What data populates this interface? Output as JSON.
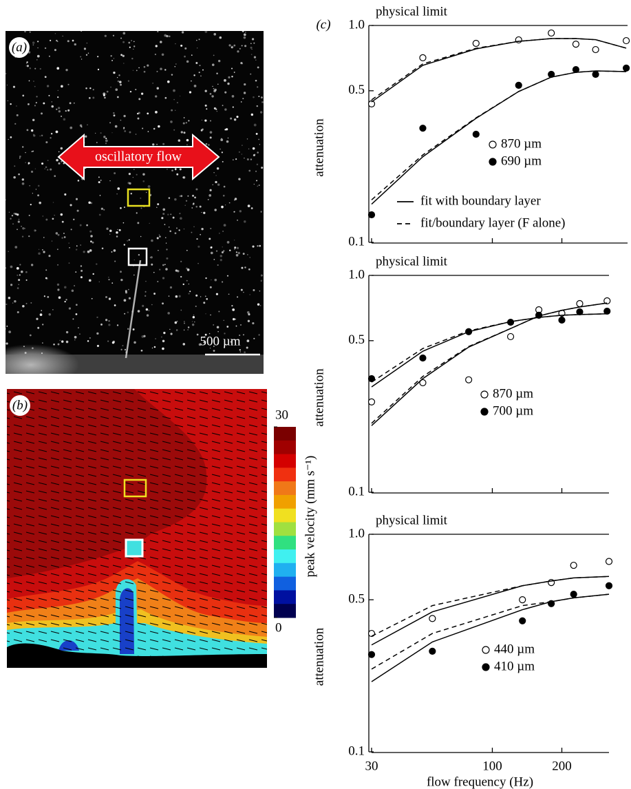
{
  "panel_a": {
    "label": "(a)",
    "arrow_label": "oscillatory flow",
    "scale_bar": "500 µm"
  },
  "panel_b": {
    "label": "(b)",
    "colorbar": {
      "label": "peak velocity (mm s⁻¹)",
      "lim": [
        0,
        30
      ],
      "ticks": [
        0,
        30
      ],
      "colors": [
        "#7a0000",
        "#a00000",
        "#d40000",
        "#f03010",
        "#f07818",
        "#f0a000",
        "#f0e020",
        "#a0e040",
        "#30e080",
        "#40f0f0",
        "#20b0f0",
        "#1060e0",
        "#0010a0",
        "#000050"
      ]
    }
  },
  "chart_data": [
    {
      "type": "scatter",
      "panel": "(c)",
      "ylabel": "attenuation",
      "xscale": "log",
      "yscale": "log",
      "xlim": [
        30,
        385
      ],
      "ylim": [
        0.1,
        1
      ],
      "xticks": [
        30,
        100,
        200
      ],
      "xtick_labels": false,
      "yticks": [
        0.1,
        0.5,
        {
          "value": 1,
          "label": "1.0"
        }
      ],
      "limit": {
        "value": 1,
        "label": "physical limit"
      },
      "x": [
        30,
        50,
        85,
        130,
        180,
        230,
        280,
        380
      ],
      "series": [
        {
          "name": "870 µm",
          "marker": "open",
          "values": [
            0.435,
            0.71,
            0.827,
            0.858,
            0.923,
            0.82,
            0.774,
            0.851
          ]
        },
        {
          "name": "690 µm",
          "marker": "filled",
          "values": [
            0.134,
            0.336,
            0.315,
            0.53,
            0.595,
            0.626,
            0.595,
            0.636
          ]
        },
        {
          "name": "fit with boundary layer",
          "style": "solid",
          "values": [
            [
              0.444,
              0.655,
              0.78,
              0.845,
              0.87,
              0.87,
              0.86,
              0.786
            ],
            [
              0.15,
              0.248,
              0.373,
              0.496,
              0.578,
              0.608,
              0.617,
              0.613
            ]
          ]
        },
        {
          "name": "fit/boundary layer (F alone)",
          "style": "dashed",
          "values": [
            [
              0.454,
              0.665,
              0.785,
              0.845,
              0.87,
              0.87,
              0.86,
              0.786
            ],
            [
              0.157,
              0.253,
              0.375,
              0.496,
              0.578,
              0.608,
              0.617,
              0.613
            ]
          ]
        }
      ]
    },
    {
      "type": "scatter",
      "ylabel": "attenuation",
      "xscale": "log",
      "yscale": "log",
      "xlim": [
        30,
        320
      ],
      "ylim": [
        0.1,
        1
      ],
      "xticks": [
        30,
        100,
        200
      ],
      "xtick_labels": false,
      "yticks": [
        0.1,
        0.5,
        {
          "value": 1,
          "label": "1.0"
        }
      ],
      "limit": {
        "value": 1,
        "label": "physical limit"
      },
      "x": [
        30,
        50,
        79,
        120,
        159,
        200,
        239,
        314
      ],
      "series": [
        {
          "name": "870 µm",
          "marker": "open",
          "values": [
            0.261,
            0.32,
            0.33,
            0.522,
            0.694,
            0.669,
            0.741,
            0.763
          ]
        },
        {
          "name": "700 µm",
          "marker": "filled",
          "values": [
            0.334,
            0.416,
            0.55,
            0.608,
            0.655,
            0.622,
            0.679,
            0.684
          ]
        },
        {
          "style": "solid",
          "values": [
            [
              0.306,
              0.447,
              0.55,
              0.612,
              0.64,
              0.655,
              0.66,
              0.665
            ],
            [
              0.203,
              0.334,
              0.467,
              0.569,
              0.65,
              0.69,
              0.715,
              0.746
            ]
          ]
        },
        {
          "style": "dashed",
          "values": [
            [
              0.322,
              0.46,
              0.555,
              0.612,
              0.64,
              0.655,
              0.66,
              0.665
            ],
            [
              0.208,
              0.342,
              0.47,
              0.569,
              0.65,
              0.69,
              0.715,
              0.746
            ]
          ]
        }
      ]
    },
    {
      "type": "scatter",
      "ylabel": "attenuation",
      "xlabel": "flow frequency (Hz)",
      "xscale": "log",
      "yscale": "log",
      "xlim": [
        30,
        320
      ],
      "ylim": [
        0.1,
        1
      ],
      "xticks": [
        30,
        100,
        200
      ],
      "xtick_labels": true,
      "yticks": [
        0.1,
        0.5,
        {
          "value": 1,
          "label": "1.0"
        }
      ],
      "limit": {
        "value": 1,
        "label": "physical limit"
      },
      "x": [
        30,
        55,
        135,
        180,
        225,
        320
      ],
      "series": [
        {
          "name": "440 µm",
          "marker": "open",
          "values": [
            0.35,
            0.41,
            0.5,
            0.6,
            0.72,
            0.75
          ]
        },
        {
          "name": "410 µm",
          "marker": "filled",
          "values": [
            0.28,
            0.29,
            0.4,
            0.48,
            0.53,
            0.58
          ]
        },
        {
          "style": "solid",
          "values": [
            [
              0.31,
              0.44,
              0.58,
              0.61,
              0.63,
              0.64
            ],
            [
              0.21,
              0.32,
              0.45,
              0.49,
              0.51,
              0.53
            ]
          ]
        },
        {
          "style": "dashed",
          "values": [
            [
              0.34,
              0.47,
              0.58,
              0.61,
              0.63,
              0.64
            ],
            [
              0.24,
              0.35,
              0.47,
              0.49,
              0.51,
              0.53
            ]
          ]
        }
      ]
    }
  ]
}
